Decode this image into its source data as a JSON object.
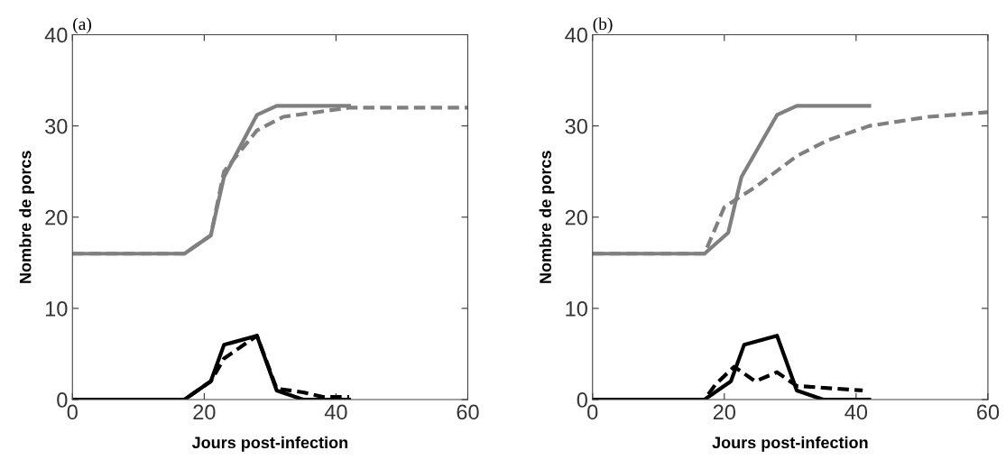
{
  "chart_data": [
    {
      "type": "line",
      "title": "(a)",
      "xlabel": "Jours post-infection",
      "ylabel": "Nombre de porcs",
      "xlim": [
        0,
        60
      ],
      "ylim": [
        0,
        40
      ],
      "xticks": [
        0,
        20,
        40,
        60
      ],
      "yticks": [
        0,
        10,
        20,
        30,
        40
      ],
      "grid": false,
      "marker": "none",
      "series": [
        {
          "color": "#808080",
          "line_style": "solid",
          "x": [
            0,
            17,
            21,
            23,
            28,
            31,
            42
          ],
          "values": [
            16,
            16,
            18,
            24.4,
            31.2,
            32.2,
            32.2
          ]
        },
        {
          "color": "#808080",
          "line_style": "dashed",
          "x": [
            0,
            17,
            21,
            23,
            28,
            32,
            37,
            42,
            60
          ],
          "values": [
            16,
            16,
            18,
            25,
            29.5,
            31,
            31.5,
            32,
            32
          ]
        },
        {
          "color": "#000000",
          "line_style": "solid",
          "x": [
            0,
            17,
            21,
            23,
            28,
            31,
            35,
            42
          ],
          "values": [
            0,
            0,
            2,
            6,
            7,
            1,
            0,
            0
          ]
        },
        {
          "color": "#000000",
          "line_style": "dashed",
          "x": [
            0,
            17,
            21,
            23,
            28,
            31,
            35,
            38,
            42
          ],
          "values": [
            0,
            0,
            2,
            4.5,
            7,
            1.2,
            0.8,
            0.3,
            0.3
          ]
        }
      ]
    },
    {
      "type": "line",
      "title": "(b)",
      "xlabel": "Jours post-infection",
      "ylabel": "Nombre de porcs",
      "xlim": [
        0,
        60
      ],
      "ylim": [
        0,
        40
      ],
      "xticks": [
        0,
        20,
        40,
        60
      ],
      "yticks": [
        0,
        10,
        20,
        30,
        40
      ],
      "grid": false,
      "marker": "none",
      "series": [
        {
          "color": "#808080",
          "line_style": "solid",
          "x": [
            0,
            17,
            20.6,
            22.6,
            28,
            31,
            42
          ],
          "values": [
            16,
            16,
            18.3,
            24.4,
            31.2,
            32.2,
            32.2
          ]
        },
        {
          "color": "#808080",
          "line_style": "dashed",
          "x": [
            0,
            17,
            20,
            24.7,
            31,
            35.6,
            42,
            51,
            60
          ],
          "values": [
            16,
            16,
            21.1,
            23.3,
            26.7,
            28.4,
            30,
            31,
            31.5
          ]
        },
        {
          "color": "#000000",
          "line_style": "solid",
          "x": [
            0,
            17,
            21,
            23,
            28,
            31,
            35,
            42
          ],
          "values": [
            0,
            0,
            2,
            6,
            7,
            1,
            0,
            0
          ]
        },
        {
          "color": "#000000",
          "line_style": "dashed",
          "x": [
            0,
            17,
            18.7,
            21.5,
            24.7,
            28,
            31,
            41
          ],
          "values": [
            0,
            0,
            1.7,
            3.6,
            2,
            3,
            1.5,
            1
          ]
        }
      ]
    }
  ]
}
